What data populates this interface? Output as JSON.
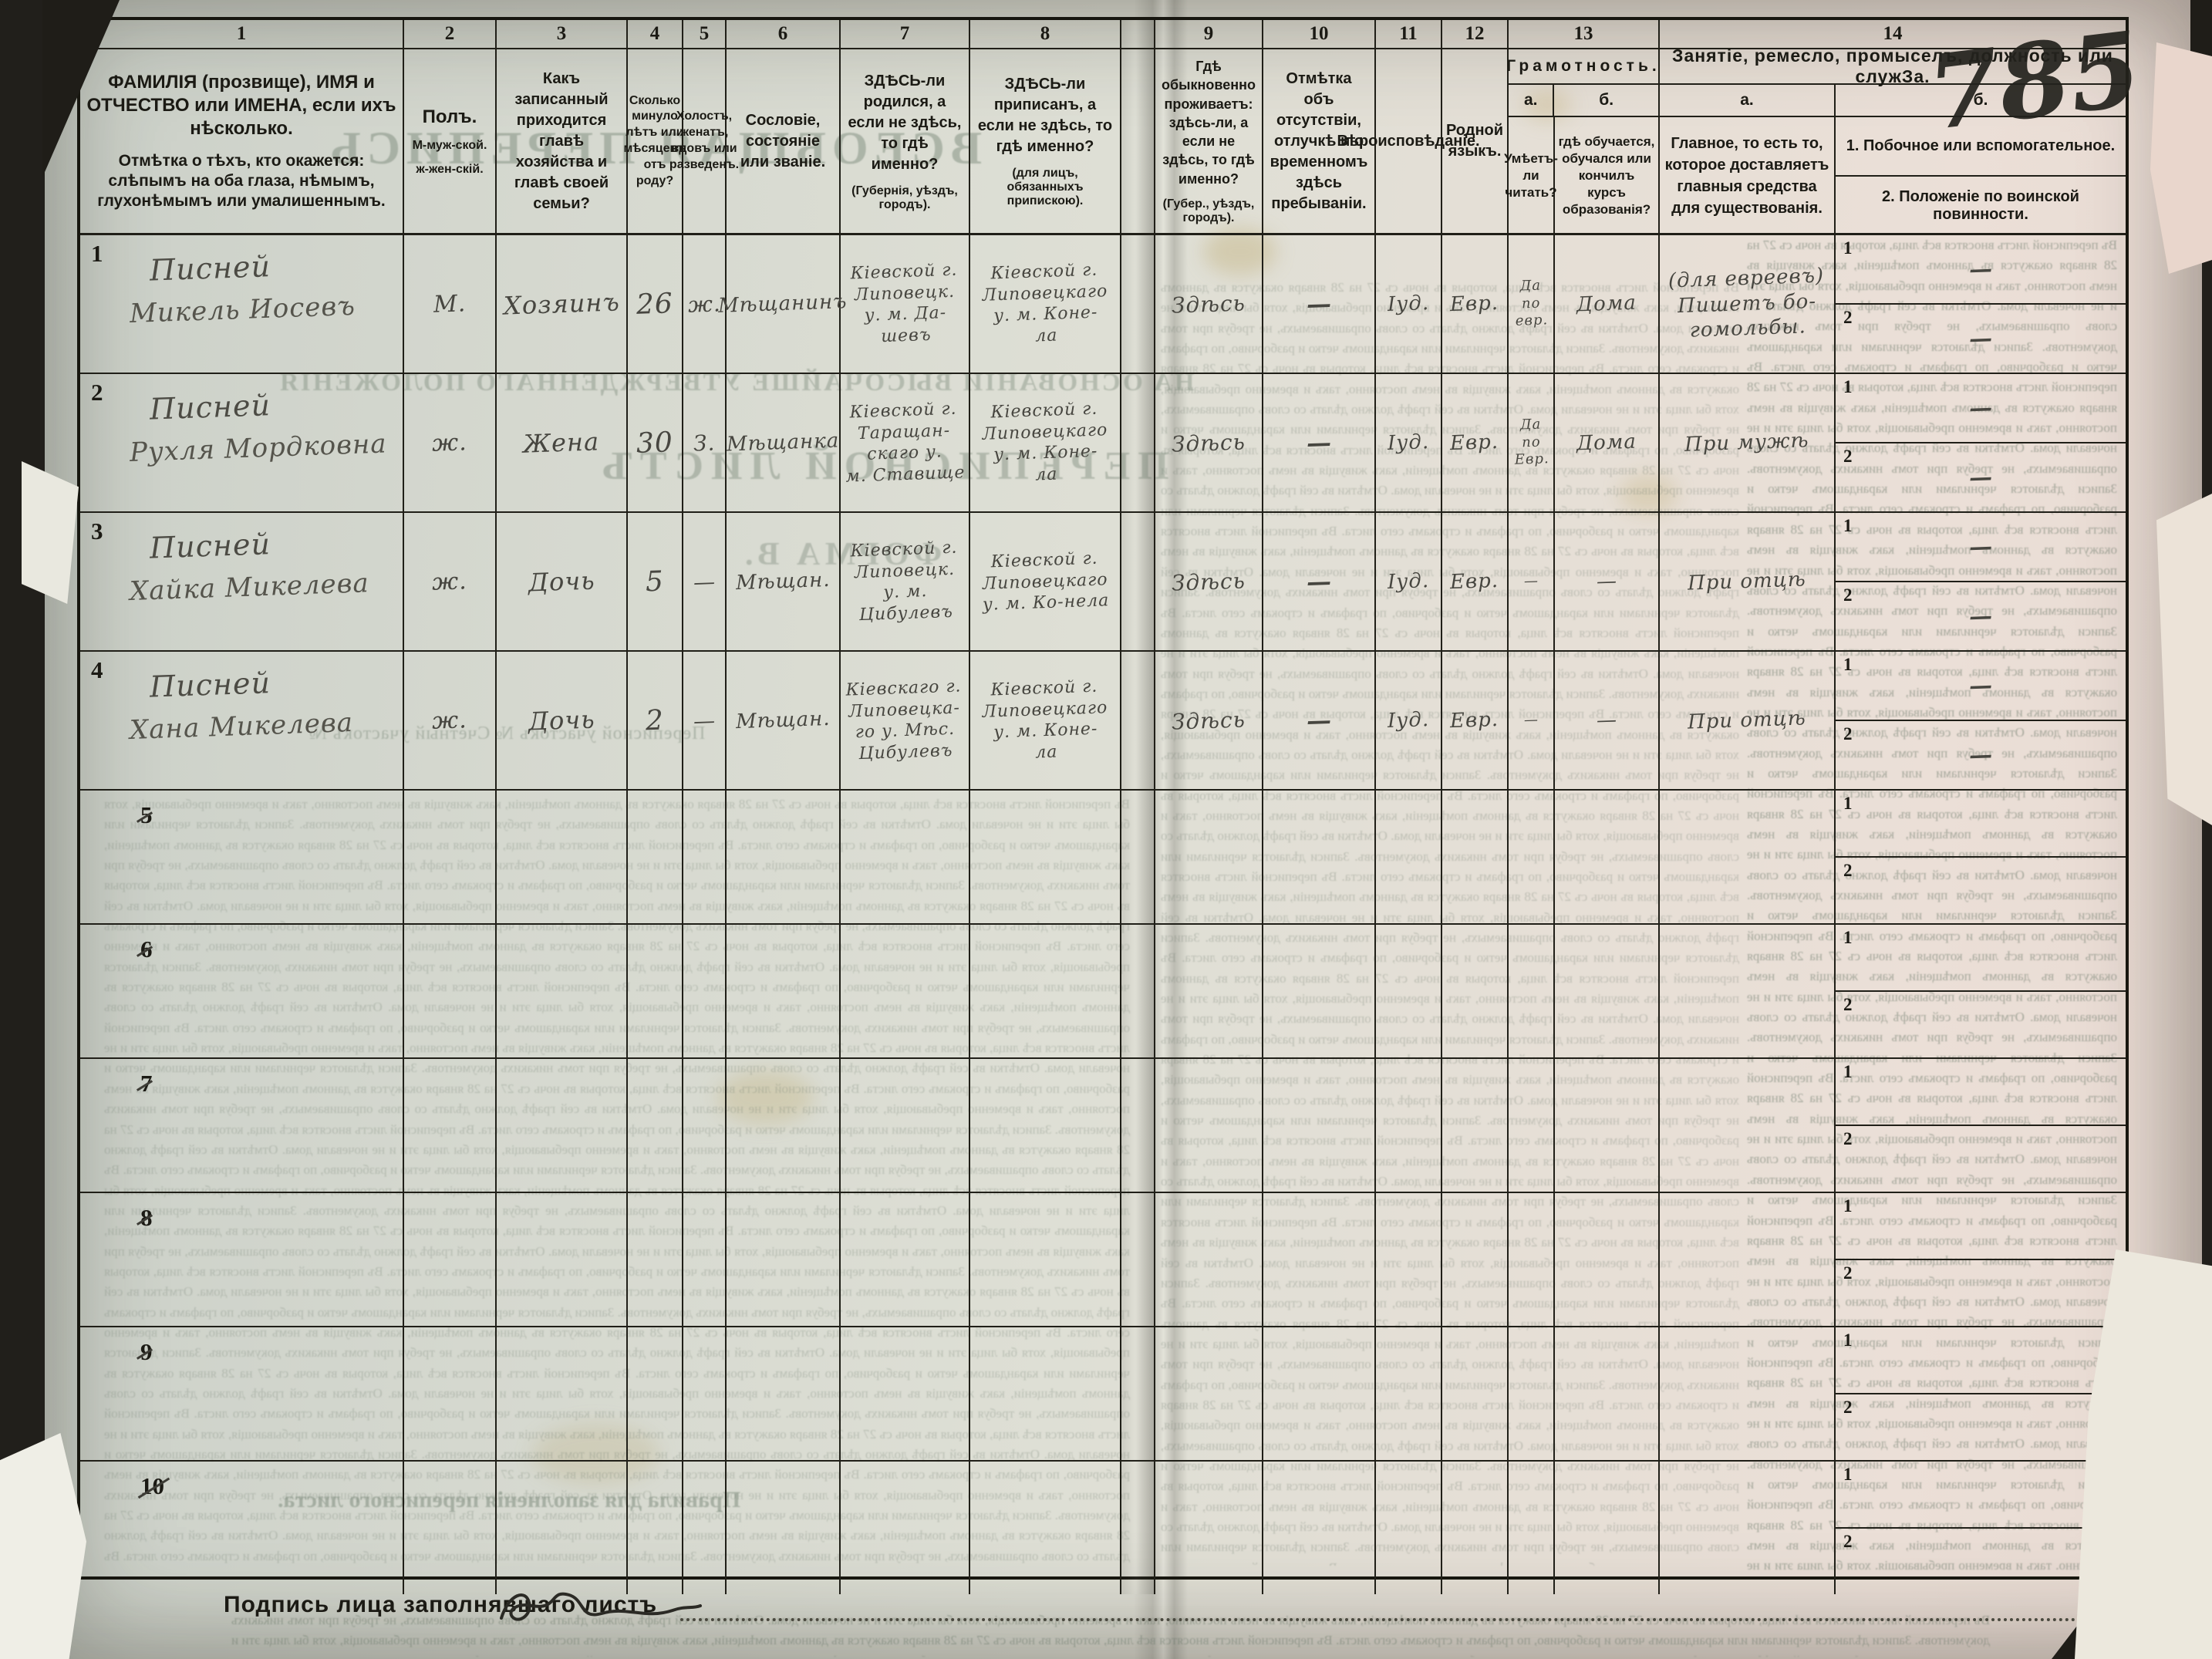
{
  "colors": {
    "paper": "#dedfd5",
    "ink": "#1b1a14",
    "pencil": "#474640",
    "ghost": "#6c7c6c",
    "backdrop": "#211f1b"
  },
  "sheet": {
    "handwritten_number": "785",
    "footer_label": "Подпись лица заполнявшаго листъ"
  },
  "labels": {
    "sub1": "1",
    "sub2": "2"
  },
  "header": {
    "col1": {
      "num": "1",
      "line1": "ФАМИЛІЯ (прозвище), ИМЯ и ОТЧЕСТВО или ИМЕНА, если ихъ нѣсколько.",
      "line2": "Отмѣтка о тѣхъ, кто окажется: слѣпымъ на оба глаза, нѣмымъ, глухонѣмымъ или умалишеннымъ."
    },
    "col2": {
      "num": "2",
      "title": "Полъ.",
      "m": "М-муж-ской.",
      "f": "ж-жен-скій."
    },
    "col3": {
      "num": "3",
      "title": "Какъ записанный приходится главѣ хозяйства и главѣ своей семьи?"
    },
    "col4": {
      "num": "4",
      "title": "Сколько минуло лѣтъ или мѣсяцевъ отъ роду?"
    },
    "col5": {
      "num": "5",
      "title": "Холостъ, женатъ, вдовъ или разведенъ."
    },
    "col6": {
      "num": "6",
      "title": "Сословіе, состояніе или званіе."
    },
    "col7": {
      "num": "7",
      "title": "ЗДѢСЬ-ли родился, а если не здѣсь, то гдѣ именно?",
      "note": "(Губернія, уѣздъ, городъ)."
    },
    "col8": {
      "num": "8",
      "title": "ЗДѢСЬ-ли приписанъ, а если не здѣсь, то гдѣ именно?",
      "note": "(для лицъ, обязанныхъ припискою)."
    },
    "col9": {
      "num": "9",
      "title": "Гдѣ обыкновенно проживаетъ: здѣсь-ли, а если не здѣсь, то гдѣ именно?",
      "note": "(Губер., уѣздъ, городъ)."
    },
    "col10": {
      "num": "10",
      "title": "Отмѣтка объ отсутствіи, отлучкѣ и о временномъ здѣсь пребываніи."
    },
    "col11": {
      "num": "11",
      "title": "Вѣроисповѣданіе."
    },
    "col12": {
      "num": "12",
      "title": "Родной языкъ."
    },
    "col13": {
      "num": "13",
      "title": "Грамотность.",
      "a_label": "а.",
      "b_label": "б.",
      "a_title": "Умѣетъ-ли читать?",
      "b_title": "гдѣ обучается, обучался или кончилъ курсъ образованія?"
    },
    "col14": {
      "num": "14",
      "title": "Занятіе, ремесло, промыселъ, должность или служЗа.",
      "a_label": "а.",
      "b_label": "б.",
      "a_title": "Главное, то есть то, которое доставляетъ главныя средства для существованія.",
      "b1": "1. Побочное или вспомогательное.",
      "b2": "2. Положеніе по воинской повинности."
    }
  },
  "rows": [
    {
      "num": "1",
      "struck": false,
      "surname": "Писней",
      "name": "Микель Иосевъ",
      "sex": "М.",
      "relation": "Хозяинъ",
      "age": "26",
      "marital": "ж.",
      "estate": "Мѣщанинъ",
      "born": "Кіевской г.\nЛиповецк.\nу. м. Да-\nшевъ",
      "registered": "Кіевской г.\nЛиповецкаго\nу. м. Коне-\nла",
      "lives": "Здѣсь",
      "absence": "—",
      "religion": "Іуд.",
      "language": "Евр.",
      "reads": "Да\nпо\nевр.",
      "school": "Дома",
      "occ_main": "(для евреевъ)\nПишетъ бо-\nгомольбы.",
      "occ_side": "—",
      "military": "—"
    },
    {
      "num": "2",
      "struck": false,
      "surname": "Писней",
      "name": "Рухля Мордковна",
      "sex": "ж.",
      "relation": "Жена",
      "age": "30",
      "marital": "З.",
      "estate": "Мѣщанка",
      "born": "Кіевской г.\nТаращан-\nскаго у.\nм. Ставище",
      "registered": "Кіевской г.\nЛиповецкаго\nу. м. Коне-\nла",
      "lives": "Здѣсь",
      "absence": "—",
      "religion": "Іуд.",
      "language": "Евр.",
      "reads": "Да\nпо\nЕвр.",
      "school": "Дома",
      "occ_main": "При мужѣ",
      "occ_side": "—",
      "military": "—"
    },
    {
      "num": "3",
      "struck": false,
      "surname": "Писней",
      "name": "Хайка Микелева",
      "sex": "ж.",
      "relation": "Дочь",
      "age": "5",
      "marital": "—",
      "estate": "Мѣщан.",
      "born": "Кіевской г.\nЛиповецк.\nу. м.\nЦибулевъ",
      "registered": "Кіевской г.\nЛиповецкаго\nу. м. Ко-нела",
      "lives": "Здѣсь",
      "absence": "—",
      "religion": "Іуд.",
      "language": "Евр.",
      "reads": "—",
      "school": "—",
      "occ_main": "При отцѣ",
      "occ_side": "—",
      "military": "—"
    },
    {
      "num": "4",
      "struck": false,
      "surname": "Писней",
      "name": "Хана Микелева",
      "sex": "ж.",
      "relation": "Дочь",
      "age": "2",
      "marital": "—",
      "estate": "Мѣщан.",
      "born": "Кіевскаго г.\nЛиповецка-\nго у. Мѣс.\nЦибулевъ",
      "registered": "Кіевской г.\nЛиповецкаго\nу. м. Коне-\nла",
      "lives": "Здѣсь",
      "absence": "—",
      "religion": "Іуд.",
      "language": "Евр.",
      "reads": "—",
      "school": "—",
      "occ_main": "При отцѣ",
      "occ_side": "—",
      "military": "—"
    },
    {
      "num": "5",
      "struck": true,
      "surname": "",
      "name": "",
      "sex": "",
      "relation": "",
      "age": "",
      "marital": "",
      "estate": "",
      "born": "",
      "registered": "",
      "lives": "",
      "absence": "",
      "religion": "",
      "language": "",
      "reads": "",
      "school": "",
      "occ_main": "",
      "occ_side": "",
      "military": ""
    },
    {
      "num": "6",
      "struck": true,
      "surname": "",
      "name": "",
      "sex": "",
      "relation": "",
      "age": "",
      "marital": "",
      "estate": "",
      "born": "",
      "registered": "",
      "lives": "",
      "absence": "",
      "religion": "",
      "language": "",
      "reads": "",
      "school": "",
      "occ_main": "",
      "occ_side": "",
      "military": ""
    },
    {
      "num": "7",
      "struck": true,
      "surname": "",
      "name": "",
      "sex": "",
      "relation": "",
      "age": "",
      "marital": "",
      "estate": "",
      "born": "",
      "registered": "",
      "lives": "",
      "absence": "",
      "religion": "",
      "language": "",
      "reads": "",
      "school": "",
      "occ_main": "",
      "occ_side": "",
      "military": ""
    },
    {
      "num": "8",
      "struck": true,
      "surname": "",
      "name": "",
      "sex": "",
      "relation": "",
      "age": "",
      "marital": "",
      "estate": "",
      "born": "",
      "registered": "",
      "lives": "",
      "absence": "",
      "religion": "",
      "language": "",
      "reads": "",
      "school": "",
      "occ_main": "",
      "occ_side": "",
      "military": ""
    },
    {
      "num": "9",
      "struck": true,
      "surname": "",
      "name": "",
      "sex": "",
      "relation": "",
      "age": "",
      "marital": "",
      "estate": "",
      "born": "",
      "registered": "",
      "lives": "",
      "absence": "",
      "religion": "",
      "language": "",
      "reads": "",
      "school": "",
      "occ_main": "",
      "occ_side": "",
      "military": ""
    },
    {
      "num": "10",
      "struck": true,
      "surname": "",
      "name": "",
      "sex": "",
      "relation": "",
      "age": "",
      "marital": "",
      "estate": "",
      "born": "",
      "registered": "",
      "lives": "",
      "absence": "",
      "religion": "",
      "language": "",
      "reads": "",
      "school": "",
      "occ_main": "",
      "occ_side": "",
      "military": ""
    }
  ],
  "bleedthrough": {
    "headline": "ВСЕОБЩАЯ ПЕРЕПИСЬ",
    "line2": "НА ОСНОВАНІИ ВЫСОЧАЙШЕ УТВЕРЖДЕННАГО ПОЛОЖЕНІЯ",
    "line3": "ПЕРЕПИСНОЙ ЛИСТЪ",
    "line4": "ФОРМА В.",
    "line5": "Переписной участокъ №            Счетный участокъ №",
    "rules_title": "Правила для заполненія переписного листа.",
    "filler": "Въ переписной листъ вносятся всѣ лица, которыя въ ночь съ 27 на 28 января окажутся въ данномъ помѣщеніи, какъ живущія въ немъ постоянно, такъ и временно пребывающія, хотя бы лица эти и не ночевали дома. Отмѣтки въ сей графѣ должно дѣлать со словъ опрашиваемыхъ, не требуя при томъ никакихъ документовъ. Записи дѣлаются чернилами или карандашомъ четко и разборчиво, по графамъ и строкамъ сего листа. "
  }
}
